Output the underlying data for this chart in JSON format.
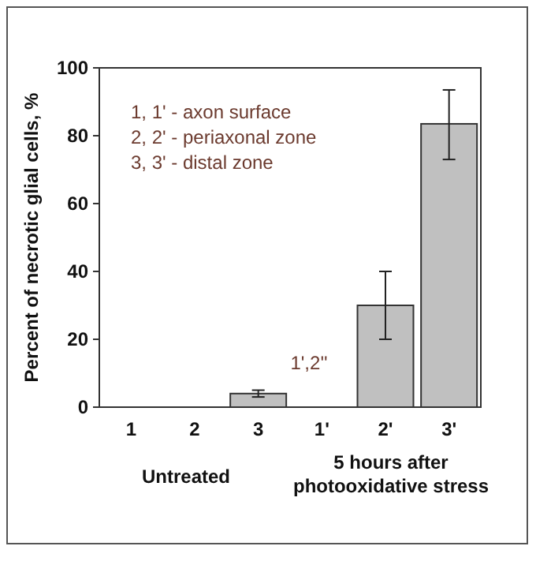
{
  "chart_data": {
    "type": "bar",
    "ylabel": "Percent of necrotic glial cells, %",
    "categories": [
      "1",
      "2",
      "3",
      "1'",
      "2'",
      "3'"
    ],
    "values": [
      0,
      0,
      4,
      0,
      30,
      83.5
    ],
    "errors": [
      null,
      null,
      1,
      null,
      10,
      [
        73,
        93.5
      ]
    ],
    "color": "#c0c0c0",
    "ylim": [
      0,
      100
    ],
    "yticks": [
      0,
      20,
      40,
      60,
      80,
      100
    ],
    "grid": false,
    "annotations": [
      "1, 1' - axon surface",
      "2, 2' - periaxonal zone",
      "3, 3' - distal zone",
      "1',2''",
      "Untreated",
      "5 hours after\nphotooxidative stress"
    ]
  }
}
